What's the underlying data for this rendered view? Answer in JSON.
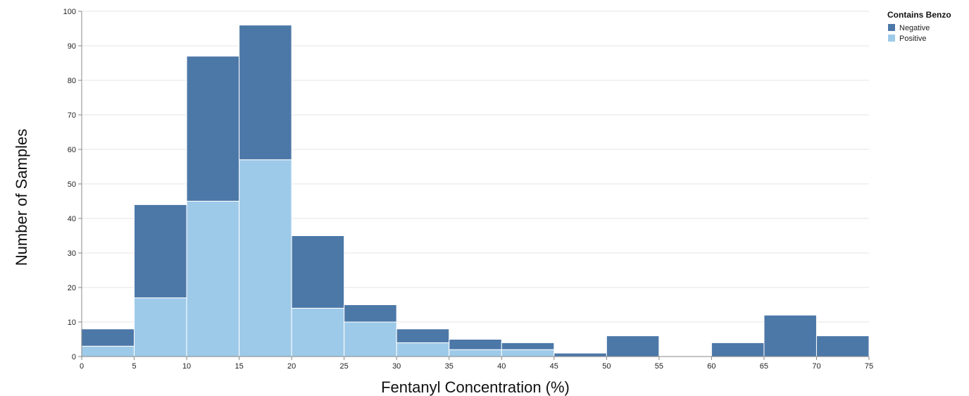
{
  "chart_data": {
    "type": "bar",
    "stacked": true,
    "title": "",
    "xlabel": "Fentanyl Concentration (%)",
    "ylabel": "Number of Samples",
    "xlim": [
      0,
      75
    ],
    "ylim": [
      0,
      100
    ],
    "x_ticks": [
      0,
      5,
      10,
      15,
      20,
      25,
      30,
      35,
      40,
      45,
      50,
      55,
      60,
      65,
      70,
      75
    ],
    "y_ticks": [
      0,
      10,
      20,
      30,
      40,
      50,
      60,
      70,
      80,
      90,
      100
    ],
    "grid": true,
    "bin_edges": [
      0,
      5,
      10,
      15,
      20,
      25,
      30,
      35,
      40,
      45,
      50,
      55,
      60,
      65,
      70,
      75
    ],
    "legend": {
      "title": "Contains Benzo",
      "position": "top-right"
    },
    "series": [
      {
        "name": "Positive",
        "color": "#9ecae9",
        "values": [
          3,
          17,
          45,
          57,
          14,
          10,
          4,
          2,
          2,
          0,
          0,
          0,
          0,
          0,
          0
        ]
      },
      {
        "name": "Negative",
        "color": "#4c78a8",
        "values": [
          5,
          27,
          42,
          39,
          21,
          5,
          4,
          3,
          2,
          1,
          6,
          0,
          4,
          12,
          6
        ]
      }
    ],
    "legend_order": [
      "Negative",
      "Positive"
    ]
  }
}
